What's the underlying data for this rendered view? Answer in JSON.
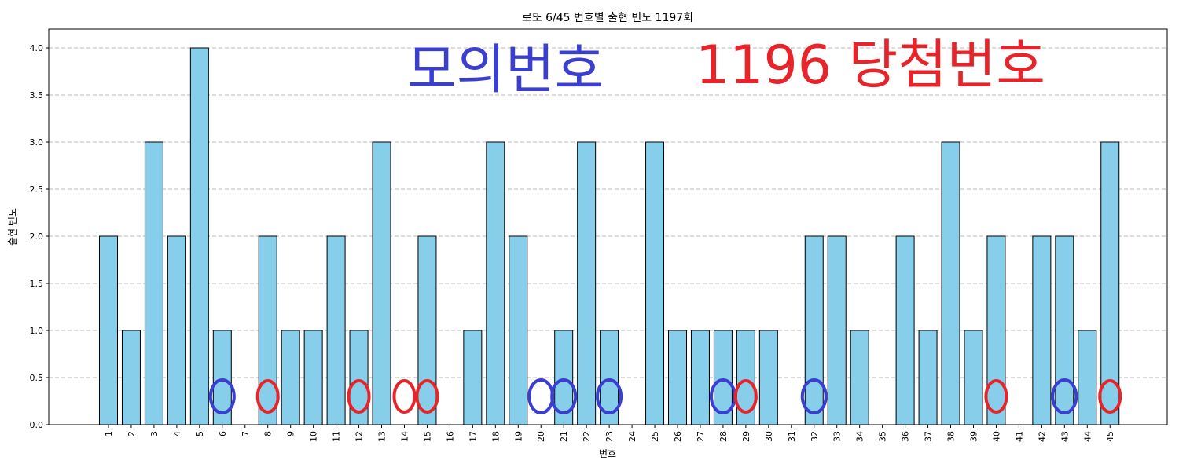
{
  "chart_data": {
    "type": "bar",
    "title": "로또 6/45 번호별 출현 빈도 1197회",
    "xlabel": "번호",
    "ylabel": "출현 빈도",
    "ylim": [
      0,
      4.2
    ],
    "yticks": [
      "0.0",
      "0.5",
      "1.0",
      "1.5",
      "2.0",
      "2.5",
      "3.0",
      "3.5",
      "4.0"
    ],
    "grid": "horizontal-dashed",
    "categories": [
      "1",
      "2",
      "3",
      "4",
      "5",
      "6",
      "7",
      "8",
      "9",
      "10",
      "11",
      "12",
      "13",
      "14",
      "15",
      "16",
      "17",
      "18",
      "19",
      "20",
      "21",
      "22",
      "23",
      "24",
      "25",
      "26",
      "27",
      "28",
      "29",
      "30",
      "31",
      "32",
      "33",
      "34",
      "35",
      "36",
      "37",
      "38",
      "39",
      "40",
      "41",
      "42",
      "43",
      "44",
      "45"
    ],
    "values": [
      2,
      1,
      3,
      2,
      4,
      1,
      0,
      2,
      1,
      1,
      2,
      1,
      3,
      0,
      2,
      0,
      1,
      3,
      2,
      0,
      1,
      3,
      1,
      0,
      3,
      1,
      1,
      1,
      1,
      1,
      0,
      2,
      2,
      1,
      0,
      2,
      1,
      3,
      1,
      2,
      0,
      2,
      2,
      1,
      3
    ],
    "bar_color": "#87CEEB",
    "bar_edge_color": "#000000"
  },
  "annotations": {
    "blue_text": "모의번호",
    "red_text": "1196 당첨번호",
    "blue_color": "#3b3fd0",
    "red_color": "#e8242b",
    "blue_circled": [
      6,
      20,
      21,
      23,
      28,
      32,
      43
    ],
    "red_circled": [
      8,
      12,
      14,
      15,
      29,
      40,
      45
    ]
  }
}
